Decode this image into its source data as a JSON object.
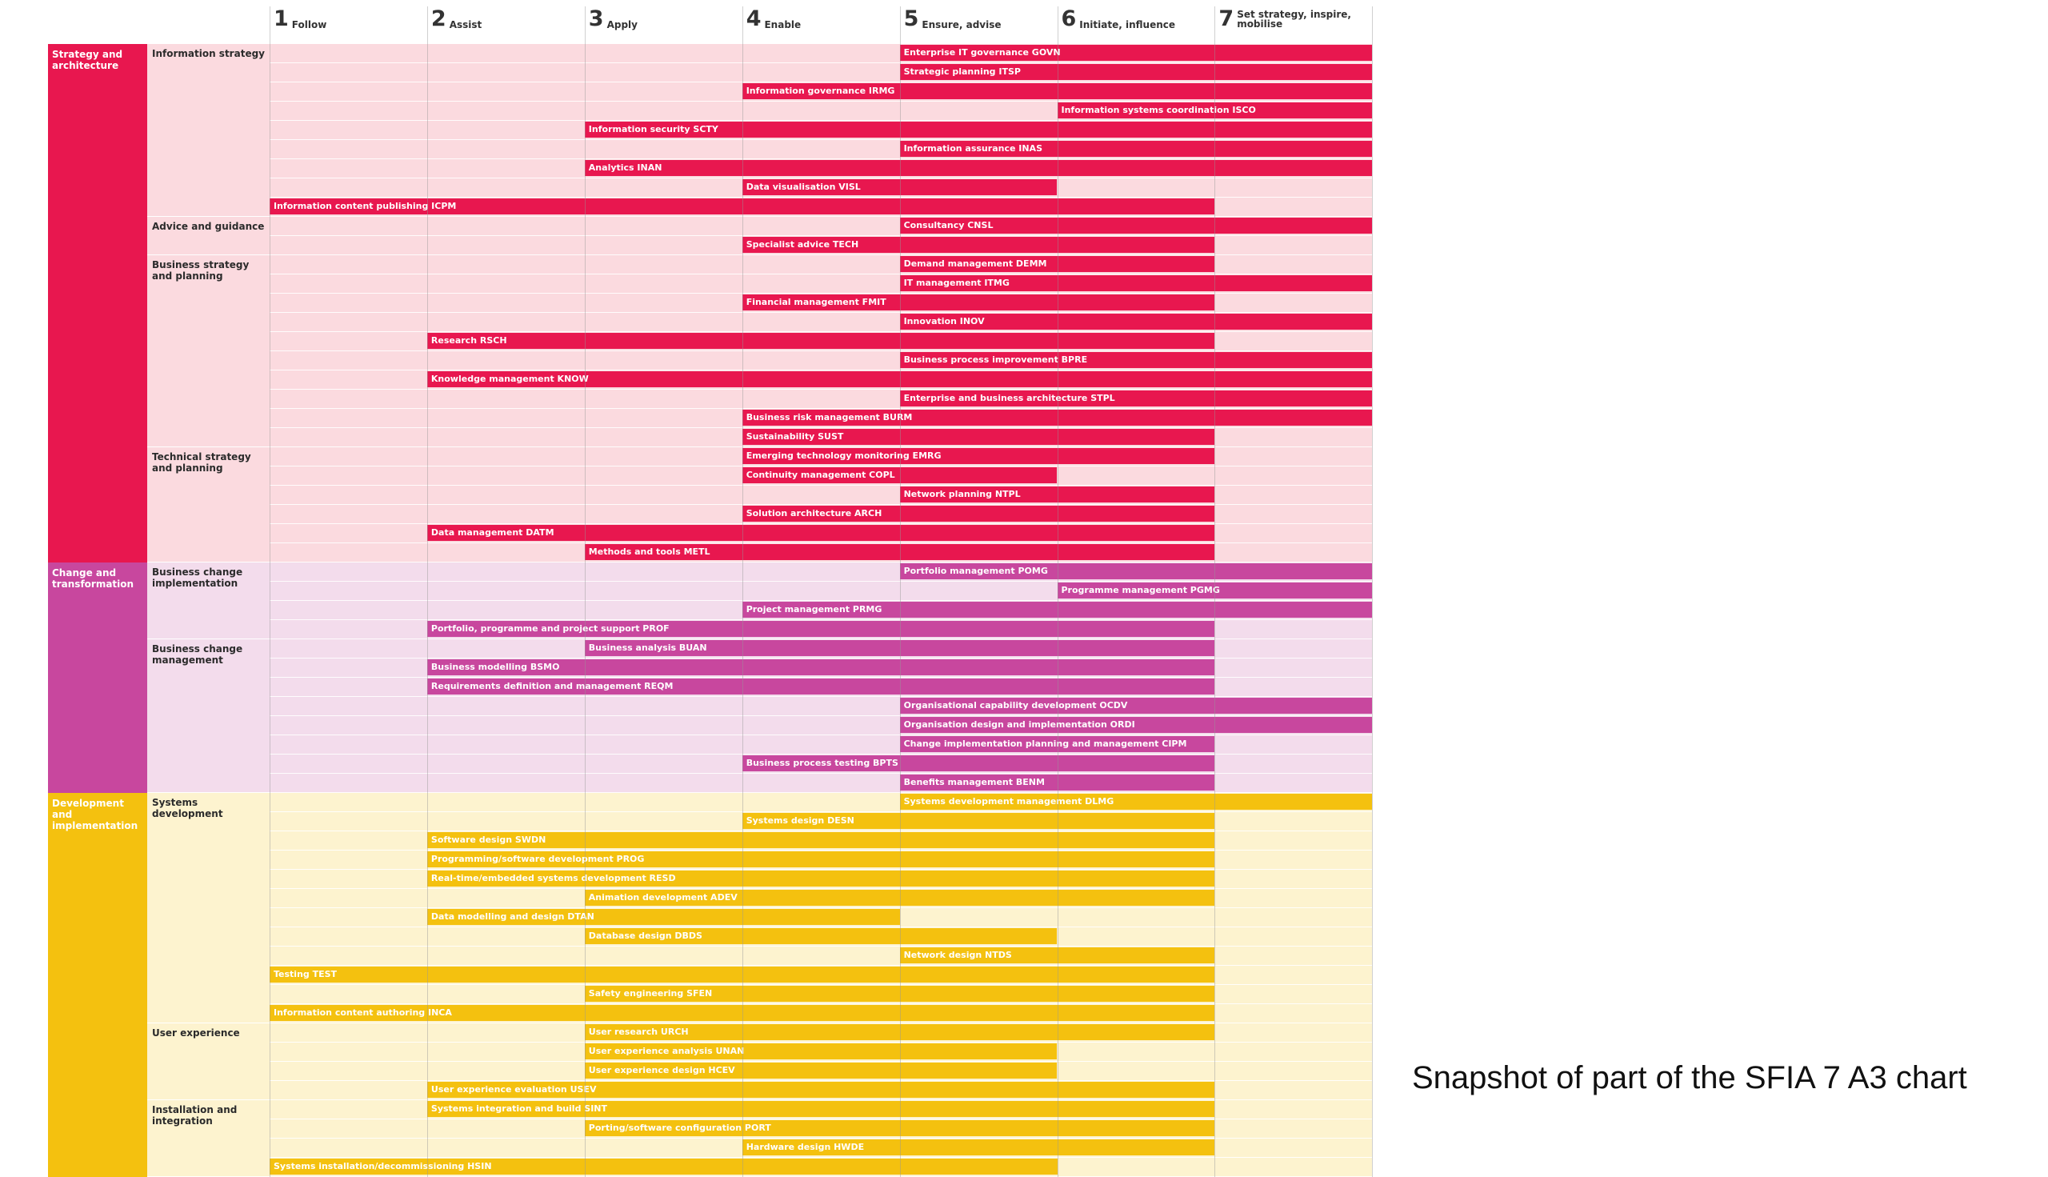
{
  "levels": [
    {
      "num": "1",
      "name": "Follow"
    },
    {
      "num": "2",
      "name": "Assist"
    },
    {
      "num": "3",
      "name": "Apply"
    },
    {
      "num": "4",
      "name": "Enable"
    },
    {
      "num": "5",
      "name": "Ensure, advise"
    },
    {
      "num": "6",
      "name": "Initiate, influence"
    },
    {
      "num": "7",
      "name": "Set strategy, inspire, mobilise"
    }
  ],
  "categories": [
    {
      "name": "Strategy and architecture",
      "color": "#E8174F",
      "light": "#FBDADF",
      "subcategories": [
        {
          "name": "Information strategy",
          "skills": [
            {
              "label": "Enterprise IT governance GOVN",
              "from": 5,
              "to": 7
            },
            {
              "label": "Strategic planning ITSP",
              "from": 5,
              "to": 7
            },
            {
              "label": "Information governance IRMG",
              "from": 4,
              "to": 7
            },
            {
              "label": "Information systems coordination ISCO",
              "from": 6,
              "to": 7
            },
            {
              "label": "Information security SCTY",
              "from": 3,
              "to": 7
            },
            {
              "label": "Information assurance INAS",
              "from": 5,
              "to": 7
            },
            {
              "label": "Analytics INAN",
              "from": 3,
              "to": 7
            },
            {
              "label": "Data visualisation VISL",
              "from": 4,
              "to": 5
            },
            {
              "label": "Information content publishing ICPM",
              "from": 1,
              "to": 6
            }
          ]
        },
        {
          "name": "Advice and guidance",
          "skills": [
            {
              "label": "Consultancy CNSL",
              "from": 5,
              "to": 7
            },
            {
              "label": "Specialist advice TECH",
              "from": 4,
              "to": 6
            }
          ]
        },
        {
          "name": "Business strategy and planning",
          "skills": [
            {
              "label": "Demand management DEMM",
              "from": 5,
              "to": 6
            },
            {
              "label": "IT management ITMG",
              "from": 5,
              "to": 7
            },
            {
              "label": "Financial management FMIT",
              "from": 4,
              "to": 6
            },
            {
              "label": "Innovation INOV",
              "from": 5,
              "to": 7
            },
            {
              "label": "Research RSCH",
              "from": 2,
              "to": 6
            },
            {
              "label": "Business process improvement BPRE",
              "from": 5,
              "to": 7
            },
            {
              "label": "Knowledge management KNOW",
              "from": 2,
              "to": 7
            },
            {
              "label": "Enterprise and business architecture STPL",
              "from": 5,
              "to": 7
            },
            {
              "label": "Business risk management BURM",
              "from": 4,
              "to": 7
            },
            {
              "label": "Sustainability SUST",
              "from": 4,
              "to": 6
            }
          ]
        },
        {
          "name": "Technical strategy and planning",
          "skills": [
            {
              "label": "Emerging technology monitoring EMRG",
              "from": 4,
              "to": 6
            },
            {
              "label": "Continuity management COPL",
              "from": 4,
              "to": 5
            },
            {
              "label": "Network planning NTPL",
              "from": 5,
              "to": 6
            },
            {
              "label": "Solution architecture ARCH",
              "from": 4,
              "to": 6
            },
            {
              "label": "Data management DATM",
              "from": 2,
              "to": 6
            },
            {
              "label": "Methods and tools METL",
              "from": 3,
              "to": 6
            }
          ]
        }
      ]
    },
    {
      "name": "Change and transformation",
      "color": "#C8479E",
      "light": "#F3DCEC",
      "subcategories": [
        {
          "name": "Business change implementation",
          "skills": [
            {
              "label": "Portfolio management POMG",
              "from": 5,
              "to": 7
            },
            {
              "label": "Programme management PGMG",
              "from": 6,
              "to": 7
            },
            {
              "label": "Project management PRMG",
              "from": 4,
              "to": 7
            },
            {
              "label": "Portfolio, programme and project support PROF",
              "from": 2,
              "to": 6
            }
          ]
        },
        {
          "name": "Business change management",
          "skills": [
            {
              "label": "Business analysis BUAN",
              "from": 3,
              "to": 6
            },
            {
              "label": "Business modelling BSMO",
              "from": 2,
              "to": 6
            },
            {
              "label": "Requirements definition and management REQM",
              "from": 2,
              "to": 6
            },
            {
              "label": "Organisational capability development OCDV",
              "from": 5,
              "to": 7
            },
            {
              "label": "Organisation design and implementation ORDI",
              "from": 5,
              "to": 7
            },
            {
              "label": "Change implementation planning and management CIPM",
              "from": 5,
              "to": 6
            },
            {
              "label": "Business process testing BPTS",
              "from": 4,
              "to": 6
            },
            {
              "label": "Benefits management BENM",
              "from": 5,
              "to": 6
            }
          ]
        }
      ]
    },
    {
      "name": "Development and implementation",
      "color": "#F4C10F",
      "light": "#FDF3CF",
      "subcategories": [
        {
          "name": "Systems development",
          "skills": [
            {
              "label": "Systems development management DLMG",
              "from": 5,
              "to": 7
            },
            {
              "label": "Systems design DESN",
              "from": 4,
              "to": 6
            },
            {
              "label": "Software design SWDN",
              "from": 2,
              "to": 6
            },
            {
              "label": "Programming/software development PROG",
              "from": 2,
              "to": 6
            },
            {
              "label": "Real-time/embedded systems development RESD",
              "from": 2,
              "to": 6
            },
            {
              "label": "Animation development ADEV",
              "from": 3,
              "to": 6
            },
            {
              "label": "Data modelling and design DTAN",
              "from": 2,
              "to": 4
            },
            {
              "label": "Database design DBDS",
              "from": 3,
              "to": 5
            },
            {
              "label": "Network design NTDS",
              "from": 5,
              "to": 6
            },
            {
              "label": "Testing TEST",
              "from": 1,
              "to": 6
            },
            {
              "label": "Safety engineering SFEN",
              "from": 3,
              "to": 6
            },
            {
              "label": "Information content authoring INCA",
              "from": 1,
              "to": 6
            }
          ]
        },
        {
          "name": "User experience",
          "skills": [
            {
              "label": "User research URCH",
              "from": 3,
              "to": 6
            },
            {
              "label": "User experience analysis UNAN",
              "from": 3,
              "to": 5
            },
            {
              "label": "User experience design HCEV",
              "from": 3,
              "to": 5
            },
            {
              "label": "User experience evaluation USEV",
              "from": 2,
              "to": 6
            }
          ]
        },
        {
          "name": "Installation and integration",
          "skills": [
            {
              "label": "Systems integration and build SINT",
              "from": 2,
              "to": 6
            },
            {
              "label": "Porting/software configuration PORT",
              "from": 3,
              "to": 6
            },
            {
              "label": "Hardware design HWDE",
              "from": 4,
              "to": 6
            },
            {
              "label": "Systems installation/decommissioning HSIN",
              "from": 1,
              "to": 5
            }
          ]
        }
      ]
    }
  ],
  "caption": "Snapshot of part of the SFIA 7 A3 chart"
}
